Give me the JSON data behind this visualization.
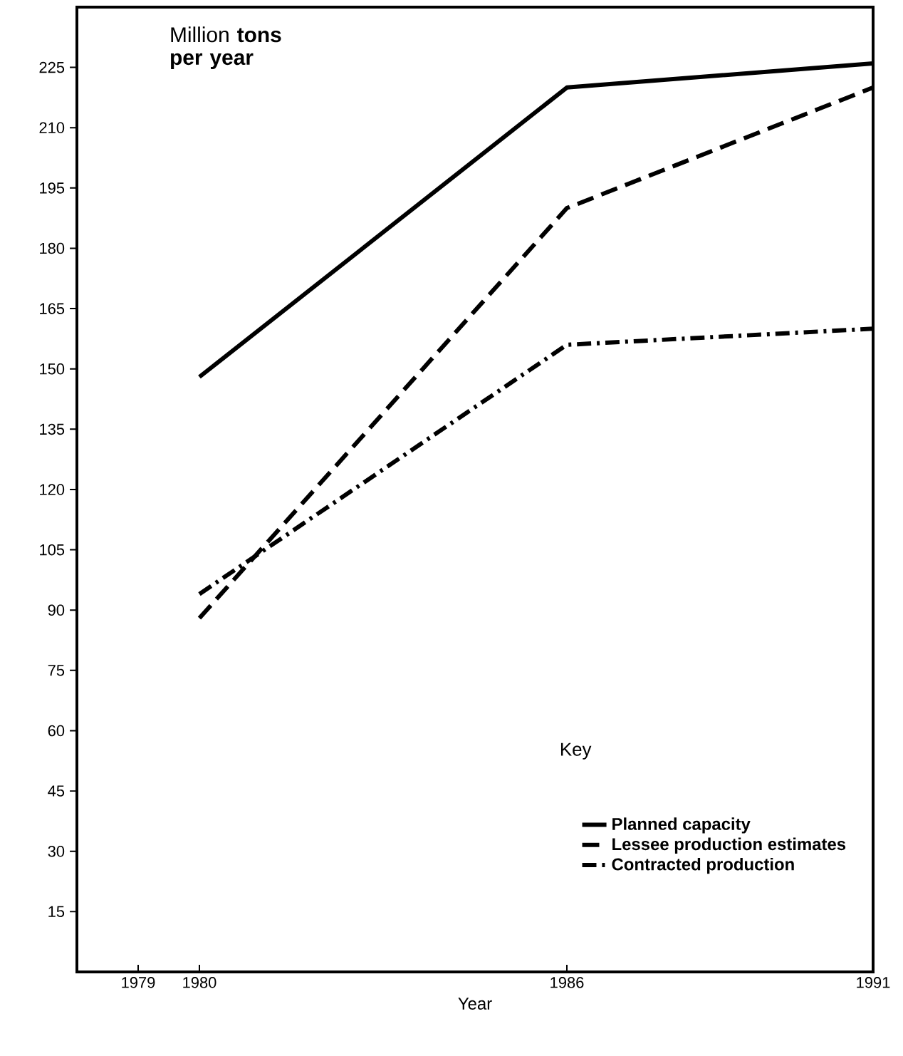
{
  "chart_data": {
    "type": "line",
    "ylabel": "Million **tons per year**",
    "xlabel": "Year",
    "legend_title": "Key",
    "x": [
      1980,
      1986,
      1991
    ],
    "series": [
      {
        "name": "Planned capacity",
        "color": "#000000",
        "line_style": "solid",
        "values": [
          148,
          220,
          226
        ]
      },
      {
        "name": "Lessee production estimates",
        "color": "#000000",
        "line_style": "dashed",
        "values": [
          88,
          190,
          220
        ]
      },
      {
        "name": "Contracted production",
        "color": "#000000",
        "line_style": "dashdot",
        "values": [
          94,
          156,
          160
        ]
      }
    ],
    "xlim": [
      1978,
      1991
    ],
    "xticks": [
      1979,
      1980,
      1986,
      1991
    ],
    "ylim": [
      0,
      240
    ],
    "yticks": [
      15,
      30,
      45,
      60,
      75,
      90,
      105,
      120,
      135,
      150,
      165,
      180,
      195,
      210,
      225
    ],
    "grid": false,
    "legend": "bottom right",
    "marker": "none"
  }
}
